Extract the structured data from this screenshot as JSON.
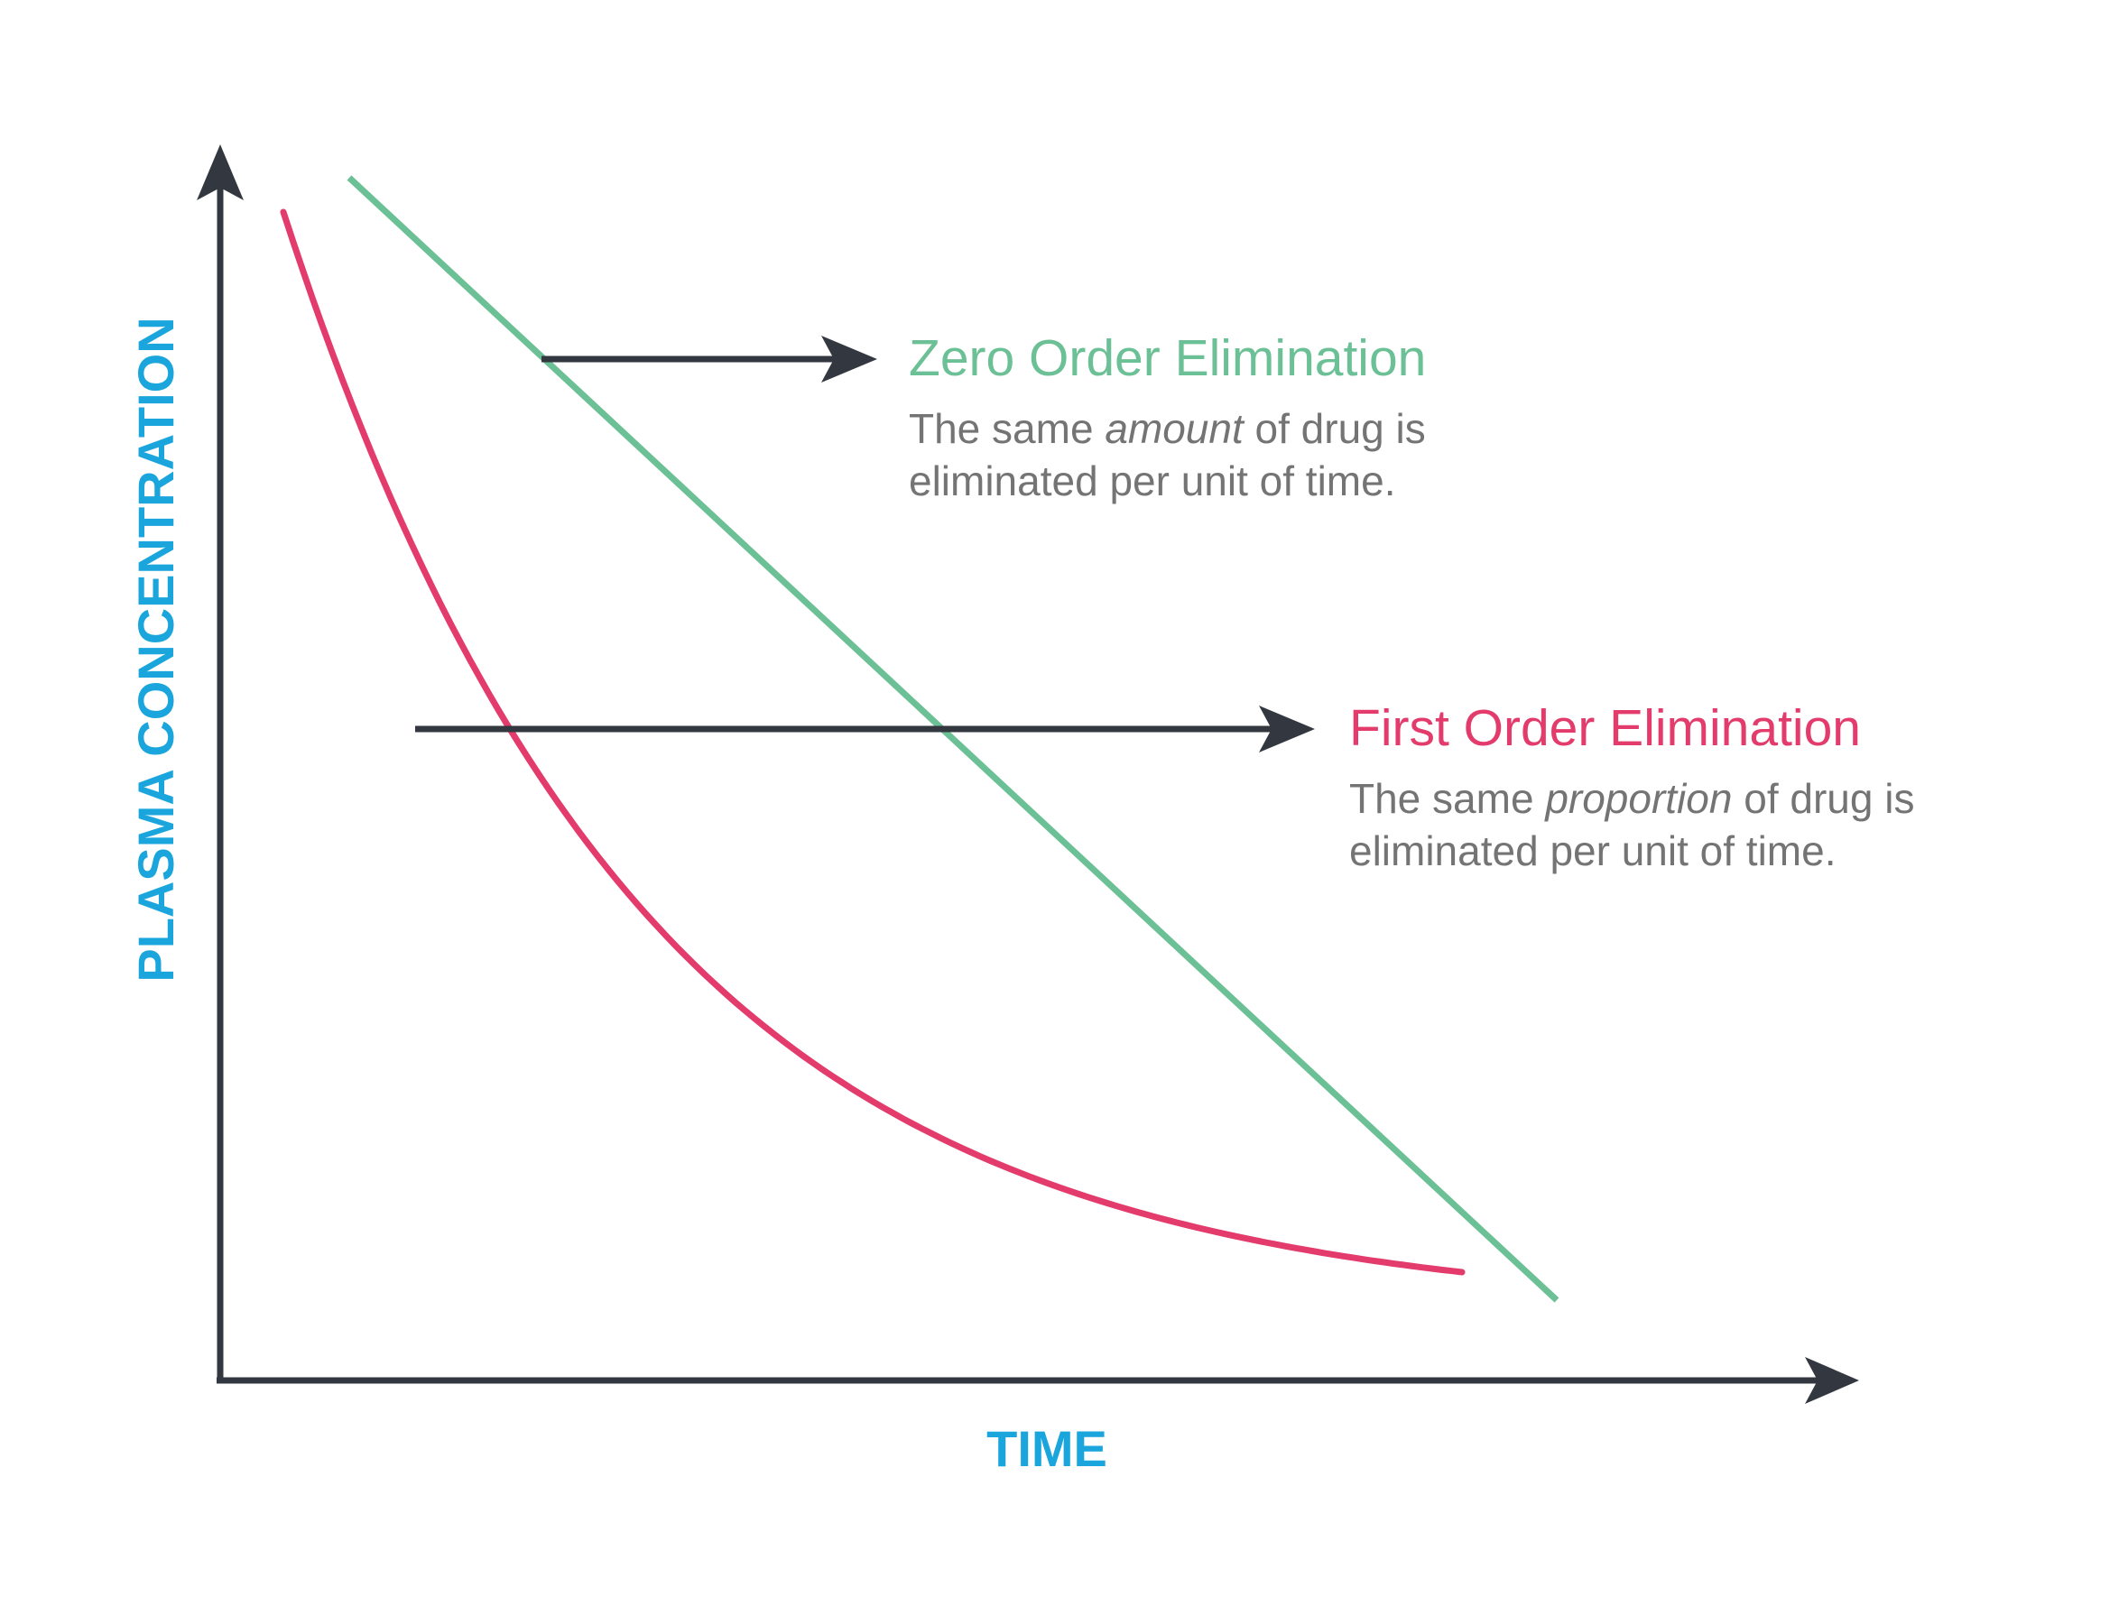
{
  "chart_data": {
    "type": "line",
    "title": "",
    "xlabel": "TIME",
    "ylabel": "PLASMA CONCENTRATION",
    "axes": {
      "ticks": "none",
      "grid": false,
      "arrowheads": true
    },
    "series": [
      {
        "name": "Zero Order Elimination",
        "shape": "straight line (constant slope)",
        "color": "#6cc095",
        "description": {
          "before": "The same ",
          "emphasis": "amount",
          "after": " of drug is",
          "line2": "eliminated per unit of time."
        }
      },
      {
        "name": "First Order Elimination",
        "shape": "exponential decay curve",
        "color": "#e23b6c",
        "description": {
          "before": "The same ",
          "emphasis": "proportion",
          "after": " of drug is",
          "line2": "eliminated per unit of time."
        }
      }
    ]
  },
  "colors": {
    "axis": "#33373f",
    "axis_label": "#1aa5dc",
    "text_gray": "#747474",
    "zero_order": "#6cc095",
    "first_order": "#e23b6c",
    "background": "#ffffff"
  }
}
